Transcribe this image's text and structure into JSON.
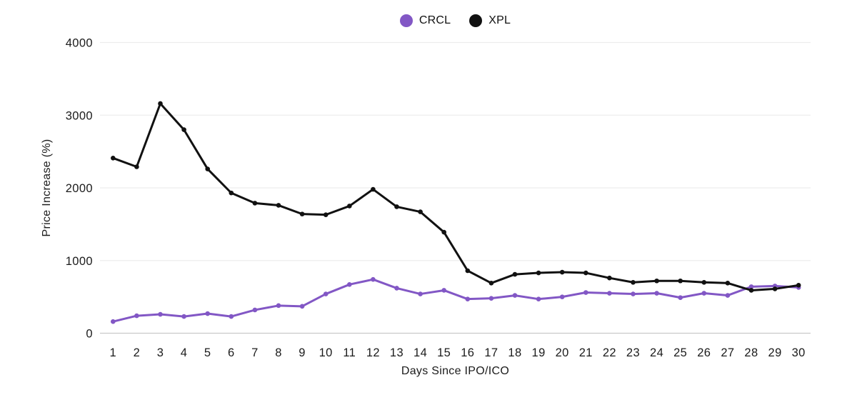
{
  "legend": {
    "items": [
      {
        "label": "CRCL"
      },
      {
        "label": "XPL"
      }
    ]
  },
  "chart_data": {
    "type": "line",
    "title": "",
    "xlabel": "Days Since IPO/ICO",
    "ylabel": "Price Increase (%)",
    "x": [
      1,
      2,
      3,
      4,
      5,
      6,
      7,
      8,
      9,
      10,
      11,
      12,
      13,
      14,
      15,
      16,
      17,
      18,
      19,
      20,
      21,
      22,
      23,
      24,
      25,
      26,
      27,
      28,
      29,
      30
    ],
    "series": [
      {
        "name": "CRCL",
        "color": "#8257c5",
        "values": [
          160,
          240,
          260,
          230,
          270,
          230,
          320,
          380,
          370,
          540,
          670,
          740,
          620,
          540,
          590,
          470,
          480,
          520,
          470,
          500,
          560,
          550,
          540,
          550,
          490,
          550,
          520,
          640,
          650,
          630
        ]
      },
      {
        "name": "XPL",
        "color": "#111111",
        "values": [
          2410,
          2290,
          3160,
          2800,
          2260,
          1930,
          1790,
          1760,
          1640,
          1630,
          1750,
          1980,
          1740,
          1670,
          1390,
          860,
          690,
          810,
          830,
          840,
          830,
          760,
          700,
          720,
          720,
          700,
          690,
          590,
          610,
          660
        ]
      }
    ],
    "ylim": [
      0,
      4000
    ],
    "y_ticks": [
      0,
      1000,
      2000,
      3000,
      4000
    ],
    "grid": true,
    "legend_position": "top",
    "colors": {
      "grid_line": "#ededed",
      "axis_line": "#c9c9c9",
      "tick_text": "#1b1b1b"
    }
  }
}
